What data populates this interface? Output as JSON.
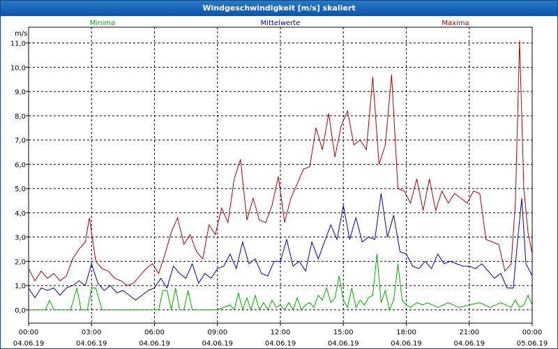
{
  "window": {
    "title": "Windgeschwindigkeit [m/s] skaliert"
  },
  "colors": {
    "minima": "#00aa00",
    "mittelwerte": "#0000aa",
    "maxima": "#aa0000"
  },
  "chart_data": {
    "type": "line",
    "title": "Windgeschwindigkeit [m/s] skaliert",
    "ylabel": "m/s",
    "xlabel": "",
    "ylim": [
      -0.55,
      11.65
    ],
    "y_ticks": [
      "0,0",
      "1,0",
      "2,0",
      "3,0",
      "4,0",
      "5,0",
      "6,0",
      "7,0",
      "8,0",
      "9,0",
      "10,0",
      "11,0"
    ],
    "y_tick_values": [
      0,
      1,
      2,
      3,
      4,
      5,
      6,
      7,
      8,
      9,
      10,
      11
    ],
    "x_range_hours": [
      0,
      24
    ],
    "x_ticks": [
      {
        "hour": 0,
        "time": "00:00",
        "date": "04.06.19"
      },
      {
        "hour": 3,
        "time": "03:00",
        "date": "04.06.19"
      },
      {
        "hour": 6,
        "time": "06:00",
        "date": "04.06.19"
      },
      {
        "hour": 9,
        "time": "09:00",
        "date": "04.06.19"
      },
      {
        "hour": 12,
        "time": "12:00",
        "date": "04.06.19"
      },
      {
        "hour": 15,
        "time": "15:00",
        "date": "04.06.19"
      },
      {
        "hour": 18,
        "time": "18:00",
        "date": "04.06.19"
      },
      {
        "hour": 21,
        "time": "21:00",
        "date": "04.06.19"
      },
      {
        "hour": 24,
        "time": "00:00",
        "date": "05.06.19"
      }
    ],
    "grid": true,
    "legend": [
      "Minima",
      "Mittelwerte",
      "Maxima"
    ],
    "series": [
      {
        "name": "Minima",
        "color": "#00aa00",
        "x": [
          0,
          0.4,
          0.8,
          1.0,
          1.2,
          1.5,
          1.8,
          2.0,
          2.3,
          2.5,
          2.8,
          3.0,
          3.2,
          3.5,
          3.8,
          4.0,
          4.5,
          5.0,
          5.5,
          6.0,
          6.2,
          6.4,
          6.6,
          6.8,
          7.0,
          7.2,
          7.4,
          7.6,
          7.8,
          8.0,
          8.4,
          8.8,
          9.0,
          9.3,
          9.6,
          9.8,
          10.0,
          10.2,
          10.4,
          10.6,
          10.8,
          11.0,
          11.2,
          11.4,
          11.6,
          11.8,
          12.0,
          12.2,
          12.4,
          12.6,
          12.8,
          13.0,
          13.2,
          13.4,
          13.6,
          13.8,
          14.0,
          14.2,
          14.4,
          14.6,
          14.8,
          15.0,
          15.2,
          15.4,
          15.6,
          15.8,
          16.0,
          16.2,
          16.4,
          16.6,
          16.8,
          17.0,
          17.2,
          17.4,
          17.6,
          17.8,
          18.0,
          18.2,
          18.5,
          18.8,
          19.0,
          19.5,
          20.0,
          20.5,
          21.0,
          21.5,
          22.0,
          22.5,
          23.0,
          23.2,
          23.4,
          23.6,
          23.8,
          24.0
        ],
        "values": [
          0,
          0,
          0,
          0.4,
          0,
          0,
          0,
          0,
          0.9,
          0,
          0,
          0.9,
          0.9,
          0,
          0,
          0,
          0,
          0,
          0,
          0,
          0,
          0.8,
          0.8,
          0,
          0.9,
          0,
          0,
          0.8,
          0,
          0,
          0,
          0,
          0,
          0.1,
          0.2,
          0,
          0.7,
          0,
          0.5,
          0,
          0.6,
          0,
          0.3,
          0,
          0.4,
          0.1,
          0.2,
          0,
          0.3,
          0,
          0.5,
          0,
          0.2,
          0.3,
          0.1,
          0.6,
          0.4,
          0.9,
          0.3,
          0.5,
          1.4,
          0.4,
          0.1,
          0.9,
          0.1,
          0.4,
          0.2,
          0.5,
          0.6,
          2.3,
          0.3,
          0.8,
          0,
          0.4,
          1.9,
          0.4,
          0.2,
          0.1,
          0.3,
          0.2,
          0.3,
          0.1,
          0.3,
          0.1,
          0.2,
          0.3,
          0.1,
          0.3,
          0.1,
          0.4,
          0.1,
          0.2,
          0.6,
          0.2
        ]
      },
      {
        "name": "Mittelwerte",
        "color": "#0000aa",
        "x": [
          0,
          0.3,
          0.6,
          0.9,
          1.2,
          1.5,
          1.8,
          2.1,
          2.4,
          2.7,
          3.0,
          3.3,
          3.6,
          3.9,
          4.2,
          4.5,
          4.8,
          5.1,
          5.4,
          5.7,
          6.0,
          6.3,
          6.6,
          6.9,
          7.2,
          7.5,
          7.8,
          8.1,
          8.4,
          8.7,
          9.0,
          9.3,
          9.6,
          9.9,
          10.2,
          10.5,
          10.8,
          11.1,
          11.4,
          11.7,
          12.0,
          12.3,
          12.6,
          12.9,
          13.2,
          13.5,
          13.8,
          14.1,
          14.4,
          14.7,
          15.0,
          15.3,
          15.6,
          15.9,
          16.2,
          16.5,
          16.8,
          17.1,
          17.4,
          17.7,
          18.0,
          18.3,
          18.6,
          18.9,
          19.2,
          19.5,
          19.8,
          20.1,
          20.4,
          20.7,
          21.0,
          21.3,
          21.6,
          21.9,
          22.2,
          22.5,
          22.8,
          23.1,
          23.3,
          23.5,
          23.7,
          24.0
        ],
        "values": [
          0.9,
          0.5,
          0.9,
          0.8,
          0.9,
          0.6,
          0.9,
          1.0,
          1.2,
          1.0,
          1.9,
          1.1,
          0.8,
          1.0,
          0.7,
          0.8,
          0.6,
          0.4,
          0.6,
          0.8,
          0.9,
          1.3,
          0.9,
          1.8,
          1.5,
          1.3,
          1.9,
          1.1,
          1.5,
          1.3,
          1.7,
          1.8,
          2.3,
          1.7,
          2.8,
          1.9,
          2.1,
          1.5,
          1.4,
          2.0,
          2.0,
          2.9,
          1.8,
          2.0,
          1.6,
          2.8,
          2.1,
          2.8,
          3.5,
          2.9,
          4.3,
          2.9,
          3.8,
          2.8,
          3.0,
          2.9,
          4.8,
          3.0,
          3.9,
          2.4,
          2.3,
          1.8,
          1.7,
          2.0,
          1.7,
          2.3,
          1.9,
          2.0,
          1.9,
          1.8,
          1.8,
          1.7,
          1.9,
          1.6,
          1.3,
          1.5,
          0.9,
          0.9,
          2.8,
          4.6,
          1.9,
          1.4
        ]
      },
      {
        "name": "Maxima",
        "color": "#aa0000",
        "x": [
          0,
          0.3,
          0.6,
          0.9,
          1.2,
          1.5,
          1.8,
          2.1,
          2.4,
          2.7,
          2.9,
          3.2,
          3.5,
          3.8,
          4.1,
          4.4,
          4.7,
          5.0,
          5.3,
          5.6,
          5.9,
          6.2,
          6.5,
          6.8,
          7.1,
          7.4,
          7.7,
          8.0,
          8.3,
          8.6,
          8.9,
          9.2,
          9.5,
          9.8,
          10.1,
          10.4,
          10.7,
          11.0,
          11.3,
          11.6,
          11.9,
          12.2,
          12.5,
          12.8,
          13.1,
          13.4,
          13.7,
          14.0,
          14.3,
          14.6,
          14.9,
          15.2,
          15.5,
          15.8,
          16.1,
          16.4,
          16.7,
          17.0,
          17.3,
          17.6,
          17.9,
          18.2,
          18.5,
          18.8,
          19.1,
          19.4,
          19.7,
          20.0,
          20.3,
          20.6,
          20.9,
          21.2,
          21.5,
          21.8,
          22.1,
          22.4,
          22.7,
          23.0,
          23.2,
          23.4,
          23.6,
          23.8,
          24.0
        ],
        "values": [
          1.7,
          1.2,
          1.6,
          1.3,
          1.5,
          1.2,
          1.4,
          2.1,
          2.5,
          2.8,
          3.8,
          2.0,
          1.7,
          1.6,
          1.3,
          1.2,
          1.0,
          1.1,
          1.4,
          1.7,
          1.9,
          1.5,
          2.3,
          3.2,
          3.8,
          2.7,
          3.1,
          2.4,
          2.1,
          3.5,
          3.1,
          4.2,
          3.6,
          5.4,
          6.2,
          3.7,
          4.6,
          3.7,
          3.6,
          4.3,
          5.5,
          3.6,
          4.6,
          5.2,
          5.8,
          5.9,
          7.5,
          6.6,
          8.1,
          6.3,
          7.6,
          8.2,
          6.8,
          7.0,
          6.6,
          9.6,
          6.0,
          6.8,
          9.7,
          5.0,
          4.9,
          4.4,
          5.4,
          4.1,
          5.4,
          4.1,
          4.9,
          4.4,
          4.8,
          4.6,
          4.4,
          4.9,
          4.8,
          2.9,
          2.8,
          2.7,
          1.6,
          1.9,
          4.4,
          11.1,
          5.0,
          3.2,
          2.3
        ]
      }
    ]
  }
}
